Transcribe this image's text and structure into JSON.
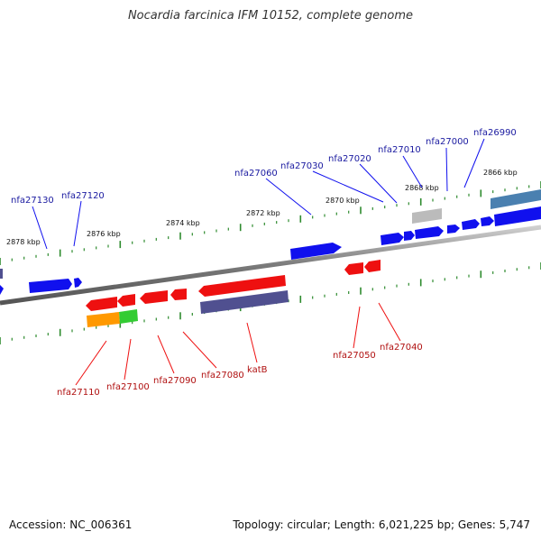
{
  "title": "Nocardia farcinica IFM 10152, complete genome",
  "accession": "Accession: NC_006361",
  "summary": "Topology: circular; Length: 6,021,225 bp; Genes: 5,747",
  "colors": {
    "forward_gene": "#1010ee",
    "reverse_gene": "#ee1010",
    "forward_label": "#1a1aa0",
    "reverse_label": "#b01010",
    "backbone": "#888888",
    "tick": "#2e8b2e",
    "pseudo": "#bbbbbb",
    "rrna": "#505090",
    "steelblue": "#4a80b0",
    "orange": "#ff9900",
    "green": "#33cc33"
  },
  "scale_labels": [
    "2878 kbp",
    "2876 kbp",
    "2874 kbp",
    "2872 kbp",
    "2870 kbp",
    "2868 kbp",
    "2866 kbp"
  ],
  "forward_labels": [
    "nfa27130",
    "nfa27120",
    "nfa27060",
    "nfa27030",
    "nfa27020",
    "nfa27010",
    "nfa27000",
    "nfa26990"
  ],
  "reverse_labels": [
    "nfa27110",
    "nfa27100",
    "nfa27090",
    "nfa27080",
    "katB",
    "nfa27050",
    "nfa27040"
  ]
}
